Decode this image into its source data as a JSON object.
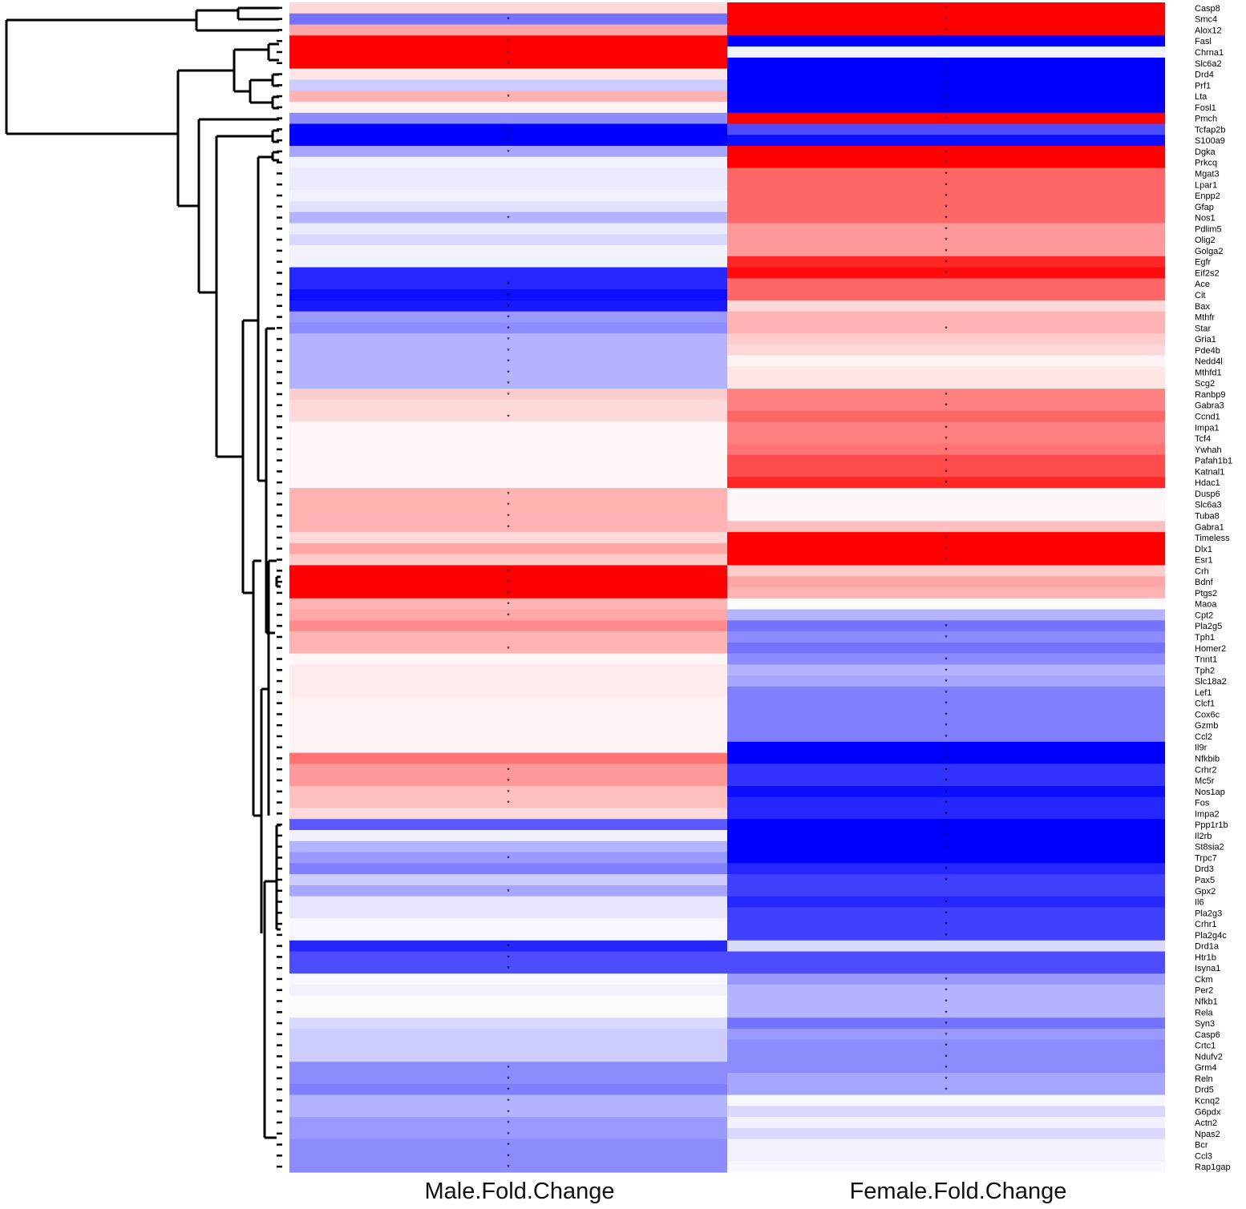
{
  "chart_data": {
    "type": "heatmap",
    "columns": [
      "Male.Fold.Change",
      "Female.Fold.Change"
    ],
    "value_scale": "log fold change, blue (negative) to white (0) to red (positive)",
    "colors": {
      "negative": "#0000ff",
      "zero": "#ffffff",
      "positive": "#ff0000"
    },
    "rows": [
      {
        "gene": "Casp8",
        "male": 0.15,
        "female": 1.0,
        "male_sig": false,
        "female_sig": true
      },
      {
        "gene": "Smc4",
        "male": -0.55,
        "female": 1.0,
        "male_sig": true,
        "female_sig": true
      },
      {
        "gene": "Alox12",
        "male": 0.35,
        "female": 1.0,
        "male_sig": false,
        "female_sig": true
      },
      {
        "gene": "Fasl",
        "male": 1.0,
        "female": -1.0,
        "male_sig": true,
        "female_sig": false
      },
      {
        "gene": "Chrna1",
        "male": 1.0,
        "female": -0.05,
        "male_sig": true,
        "female_sig": false
      },
      {
        "gene": "Slc6a2",
        "male": 1.0,
        "female": -1.0,
        "male_sig": true,
        "female_sig": true
      },
      {
        "gene": "Drd4",
        "male": 0.1,
        "female": -1.0,
        "male_sig": false,
        "female_sig": true
      },
      {
        "gene": "Prf1",
        "male": -0.2,
        "female": -1.0,
        "male_sig": false,
        "female_sig": true
      },
      {
        "gene": "Lta",
        "male": 0.3,
        "female": -1.0,
        "male_sig": true,
        "female_sig": true
      },
      {
        "gene": "Fosl1",
        "male": 0.05,
        "female": -1.0,
        "male_sig": false,
        "female_sig": true
      },
      {
        "gene": "Pmch",
        "male": -0.45,
        "female": 1.0,
        "male_sig": false,
        "female_sig": true
      },
      {
        "gene": "Tcfap2b",
        "male": -1.0,
        "female": -0.7,
        "male_sig": true,
        "female_sig": false
      },
      {
        "gene": "S100a9",
        "male": -1.0,
        "female": -0.95,
        "male_sig": true,
        "female_sig": false
      },
      {
        "gene": "Dgka",
        "male": -0.35,
        "female": 1.0,
        "male_sig": true,
        "female_sig": true
      },
      {
        "gene": "Prkcq",
        "male": -0.05,
        "female": 1.0,
        "male_sig": false,
        "female_sig": true
      },
      {
        "gene": "Mgat3",
        "male": -0.08,
        "female": 0.6,
        "male_sig": false,
        "female_sig": true
      },
      {
        "gene": "Lpar1",
        "male": -0.08,
        "female": 0.6,
        "male_sig": false,
        "female_sig": true
      },
      {
        "gene": "Enpp2",
        "male": -0.05,
        "female": 0.6,
        "male_sig": false,
        "female_sig": true
      },
      {
        "gene": "Gfap",
        "male": -0.12,
        "female": 0.6,
        "male_sig": false,
        "female_sig": true
      },
      {
        "gene": "Nos1",
        "male": -0.3,
        "female": 0.6,
        "male_sig": true,
        "female_sig": true
      },
      {
        "gene": "Pdlim5",
        "male": -0.08,
        "female": 0.4,
        "male_sig": false,
        "female_sig": true
      },
      {
        "gene": "Olig2",
        "male": -0.15,
        "female": 0.4,
        "male_sig": false,
        "female_sig": true
      },
      {
        "gene": "Golga2",
        "male": -0.05,
        "female": 0.4,
        "male_sig": false,
        "female_sig": true
      },
      {
        "gene": "Egfr",
        "male": -0.05,
        "female": 0.85,
        "male_sig": false,
        "female_sig": true
      },
      {
        "gene": "Eif2s2",
        "male": -0.85,
        "female": 0.95,
        "male_sig": false,
        "female_sig": true
      },
      {
        "gene": "Ace",
        "male": -0.85,
        "female": 0.6,
        "male_sig": true,
        "female_sig": false
      },
      {
        "gene": "Cit",
        "male": -0.95,
        "female": 0.6,
        "male_sig": true,
        "female_sig": false
      },
      {
        "gene": "Bax",
        "male": -0.9,
        "female": 0.15,
        "male_sig": true,
        "female_sig": false
      },
      {
        "gene": "Mthfr",
        "male": -0.4,
        "female": 0.3,
        "male_sig": true,
        "female_sig": false
      },
      {
        "gene": "Star",
        "male": -0.45,
        "female": 0.3,
        "male_sig": true,
        "female_sig": true
      },
      {
        "gene": "Gria1",
        "male": -0.3,
        "female": 0.2,
        "male_sig": true,
        "female_sig": false
      },
      {
        "gene": "Pde4b",
        "male": -0.3,
        "female": 0.15,
        "male_sig": true,
        "female_sig": false
      },
      {
        "gene": "Nedd4l",
        "male": -0.3,
        "female": 0.05,
        "male_sig": true,
        "female_sig": false
      },
      {
        "gene": "Mthfd1",
        "male": -0.3,
        "female": 0.1,
        "male_sig": true,
        "female_sig": false
      },
      {
        "gene": "Scg2",
        "male": -0.3,
        "female": 0.1,
        "male_sig": true,
        "female_sig": false
      },
      {
        "gene": "Ranbp9",
        "male": 0.2,
        "female": 0.5,
        "male_sig": true,
        "female_sig": true
      },
      {
        "gene": "Gabra3",
        "male": 0.15,
        "female": 0.5,
        "male_sig": false,
        "female_sig": true
      },
      {
        "gene": "Ccnd1",
        "male": 0.15,
        "female": 0.6,
        "male_sig": true,
        "female_sig": false
      },
      {
        "gene": "Impa1",
        "male": 0.03,
        "female": 0.5,
        "male_sig": false,
        "female_sig": true
      },
      {
        "gene": "Tcf4",
        "male": 0.03,
        "female": 0.5,
        "male_sig": false,
        "female_sig": true
      },
      {
        "gene": "Ywhah",
        "male": 0.03,
        "female": 0.55,
        "male_sig": false,
        "female_sig": true
      },
      {
        "gene": "Pafah1b1",
        "male": 0.03,
        "female": 0.7,
        "male_sig": false,
        "female_sig": true
      },
      {
        "gene": "Katnal1",
        "male": 0.03,
        "female": 0.7,
        "male_sig": false,
        "female_sig": true
      },
      {
        "gene": "Hdac1",
        "male": 0.03,
        "female": 0.85,
        "male_sig": false,
        "female_sig": true
      },
      {
        "gene": "Dusp6",
        "male": 0.3,
        "female": 0.03,
        "male_sig": true,
        "female_sig": false
      },
      {
        "gene": "Slc6a3",
        "male": 0.3,
        "female": 0.03,
        "male_sig": true,
        "female_sig": false
      },
      {
        "gene": "Tuba8",
        "male": 0.3,
        "female": 0.03,
        "male_sig": true,
        "female_sig": false
      },
      {
        "gene": "Gabra1",
        "male": 0.3,
        "female": 0.25,
        "male_sig": true,
        "female_sig": false
      },
      {
        "gene": "Timeless",
        "male": 0.15,
        "female": 1.0,
        "male_sig": false,
        "female_sig": true
      },
      {
        "gene": "Dlx1",
        "male": 0.35,
        "female": 1.0,
        "male_sig": false,
        "female_sig": true
      },
      {
        "gene": "Esr1",
        "male": 0.2,
        "female": 1.0,
        "male_sig": false,
        "female_sig": true
      },
      {
        "gene": "Crh",
        "male": 1.0,
        "female": 0.2,
        "male_sig": true,
        "female_sig": false
      },
      {
        "gene": "Bdnf",
        "male": 1.0,
        "female": 0.35,
        "male_sig": true,
        "female_sig": false
      },
      {
        "gene": "Ptgs2",
        "male": 1.0,
        "female": 0.3,
        "male_sig": true,
        "female_sig": false
      },
      {
        "gene": "Maoa",
        "male": 0.3,
        "female": -0.02,
        "male_sig": true,
        "female_sig": false
      },
      {
        "gene": "Cpt2",
        "male": 0.35,
        "female": -0.3,
        "male_sig": true,
        "female_sig": false
      },
      {
        "gene": "Pla2g5",
        "male": 0.45,
        "female": -0.55,
        "male_sig": false,
        "female_sig": true
      },
      {
        "gene": "Tph1",
        "male": 0.3,
        "female": -0.45,
        "male_sig": false,
        "female_sig": true
      },
      {
        "gene": "Homer2",
        "male": 0.3,
        "female": -0.55,
        "male_sig": true,
        "female_sig": false
      },
      {
        "gene": "Tnnt1",
        "male": 0.03,
        "female": -0.45,
        "male_sig": false,
        "female_sig": true
      },
      {
        "gene": "Tph2",
        "male": 0.08,
        "female": -0.3,
        "male_sig": false,
        "female_sig": true
      },
      {
        "gene": "Slc18a2",
        "male": 0.08,
        "female": -0.35,
        "male_sig": false,
        "female_sig": true
      },
      {
        "gene": "Lef1",
        "male": 0.08,
        "female": -0.5,
        "male_sig": false,
        "female_sig": true
      },
      {
        "gene": "Clcf1",
        "male": 0.05,
        "female": -0.5,
        "male_sig": false,
        "female_sig": true
      },
      {
        "gene": "Cox6c",
        "male": 0.05,
        "female": -0.5,
        "male_sig": false,
        "female_sig": true
      },
      {
        "gene": "Gzmb",
        "male": 0.05,
        "female": -0.5,
        "male_sig": false,
        "female_sig": true
      },
      {
        "gene": "Ccl2",
        "male": 0.05,
        "female": -0.5,
        "male_sig": false,
        "female_sig": true
      },
      {
        "gene": "Il9r",
        "male": 0.05,
        "female": -1.0,
        "male_sig": false,
        "female_sig": true
      },
      {
        "gene": "Nfkbib",
        "male": 0.55,
        "female": -1.0,
        "male_sig": false,
        "female_sig": true
      },
      {
        "gene": "Crhr2",
        "male": 0.4,
        "female": -0.8,
        "male_sig": true,
        "female_sig": true
      },
      {
        "gene": "Mc5r",
        "male": 0.4,
        "female": -0.8,
        "male_sig": true,
        "female_sig": true
      },
      {
        "gene": "Nos1ap",
        "male": 0.25,
        "female": -0.95,
        "male_sig": true,
        "female_sig": true
      },
      {
        "gene": "Fos",
        "male": 0.25,
        "female": -0.85,
        "male_sig": true,
        "female_sig": true
      },
      {
        "gene": "Impa2",
        "male": 0.15,
        "female": -0.85,
        "male_sig": false,
        "female_sig": true
      },
      {
        "gene": "Ppp1r1b",
        "male": -0.65,
        "female": -1.0,
        "male_sig": false,
        "female_sig": true
      },
      {
        "gene": "Il2rb",
        "male": -0.05,
        "female": -1.0,
        "male_sig": false,
        "female_sig": true
      },
      {
        "gene": "St8sia2",
        "male": -0.3,
        "female": -1.0,
        "male_sig": false,
        "female_sig": true
      },
      {
        "gene": "Trpc7",
        "male": -0.4,
        "female": -1.0,
        "male_sig": true,
        "female_sig": false
      },
      {
        "gene": "Drd3",
        "male": -0.5,
        "female": -0.85,
        "male_sig": false,
        "female_sig": true
      },
      {
        "gene": "Pax5",
        "male": -0.2,
        "female": -0.75,
        "male_sig": false,
        "female_sig": true
      },
      {
        "gene": "Gpx2",
        "male": -0.35,
        "female": -0.75,
        "male_sig": true,
        "female_sig": false
      },
      {
        "gene": "Il6",
        "male": -0.1,
        "female": -0.85,
        "male_sig": false,
        "female_sig": true
      },
      {
        "gene": "Pla2g3",
        "male": -0.1,
        "female": -0.75,
        "male_sig": false,
        "female_sig": true
      },
      {
        "gene": "Crhr1",
        "male": -0.03,
        "female": -0.75,
        "male_sig": false,
        "female_sig": true
      },
      {
        "gene": "Pla2g4c",
        "male": -0.03,
        "female": -0.75,
        "male_sig": false,
        "female_sig": true
      },
      {
        "gene": "Drd1a",
        "male": -0.85,
        "female": -0.15,
        "male_sig": true,
        "female_sig": false
      },
      {
        "gene": "Htr1b",
        "male": -0.7,
        "female": -0.7,
        "male_sig": true,
        "female_sig": false
      },
      {
        "gene": "Isyna1",
        "male": -0.7,
        "female": -0.7,
        "male_sig": true,
        "female_sig": false
      },
      {
        "gene": "Ckm",
        "male": -0.03,
        "female": -0.4,
        "male_sig": false,
        "female_sig": true
      },
      {
        "gene": "Per2",
        "male": -0.05,
        "female": -0.3,
        "male_sig": false,
        "female_sig": true
      },
      {
        "gene": "Nfkb1",
        "male": -0.02,
        "female": -0.3,
        "male_sig": false,
        "female_sig": true
      },
      {
        "gene": "Rela",
        "male": -0.02,
        "female": -0.3,
        "male_sig": false,
        "female_sig": true
      },
      {
        "gene": "Syn3",
        "male": -0.15,
        "female": -0.55,
        "male_sig": false,
        "female_sig": true
      },
      {
        "gene": "Casp6",
        "male": -0.2,
        "female": -0.4,
        "male_sig": false,
        "female_sig": true
      },
      {
        "gene": "Crtc1",
        "male": -0.2,
        "female": -0.45,
        "male_sig": false,
        "female_sig": true
      },
      {
        "gene": "Ndufv2",
        "male": -0.2,
        "female": -0.45,
        "male_sig": false,
        "female_sig": true
      },
      {
        "gene": "Grm4",
        "male": -0.45,
        "female": -0.45,
        "male_sig": true,
        "female_sig": true
      },
      {
        "gene": "Reln",
        "male": -0.45,
        "female": -0.35,
        "male_sig": true,
        "female_sig": true
      },
      {
        "gene": "Drd5",
        "male": -0.5,
        "female": -0.35,
        "male_sig": true,
        "female_sig": true
      },
      {
        "gene": "Kcnq2",
        "male": -0.3,
        "female": -0.03,
        "male_sig": true,
        "female_sig": false
      },
      {
        "gene": "G6pdx",
        "male": -0.3,
        "female": -0.15,
        "male_sig": true,
        "female_sig": false
      },
      {
        "gene": "Actn2",
        "male": -0.4,
        "female": -0.05,
        "male_sig": true,
        "female_sig": false
      },
      {
        "gene": "Npas2",
        "male": -0.4,
        "female": -0.15,
        "male_sig": true,
        "female_sig": false
      },
      {
        "gene": "Bcr",
        "male": -0.45,
        "female": -0.05,
        "male_sig": true,
        "female_sig": false
      },
      {
        "gene": "Ccl3",
        "male": -0.45,
        "female": -0.05,
        "male_sig": true,
        "female_sig": false
      },
      {
        "gene": "Rap1gap",
        "male": -0.45,
        "female": -0.03,
        "male_sig": true,
        "female_sig": false
      }
    ]
  }
}
